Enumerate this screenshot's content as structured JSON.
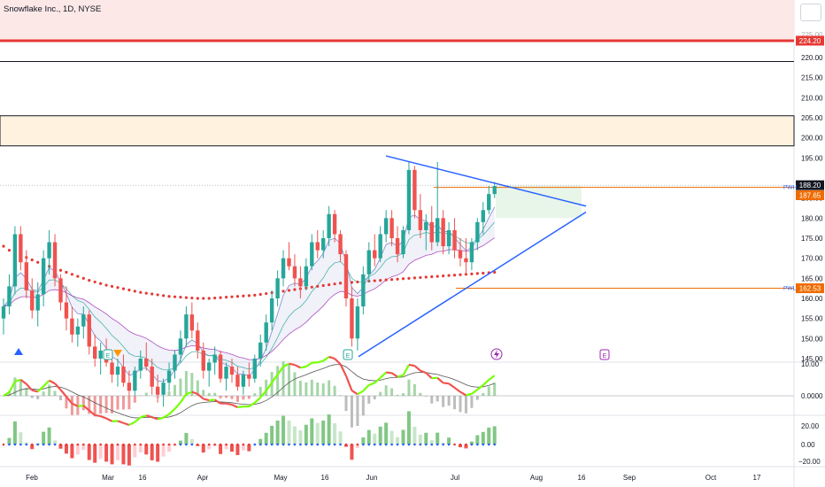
{
  "header": {
    "symbol_label": "Snowflake Inc., 1D, NYSE"
  },
  "colors": {
    "up": "#26a69a",
    "down": "#ef5350",
    "trend": "#2962ff",
    "support_res": "#ef6c00",
    "resistance_red": "#e53935",
    "ma_red": "#e53935",
    "macd_up": "#76ff03",
    "macd_down": "#ef5350"
  },
  "chart_data": {
    "type": "candlestick",
    "price_axis": {
      "ticks": [
        "220.00",
        "215.00",
        "210.00",
        "205.00",
        "200.00",
        "195.00",
        "185.00",
        "180.00",
        "175.00",
        "170.00",
        "165.00",
        "160.00",
        "155.00",
        "150.00",
        "145.00"
      ],
      "tick_values": [
        220,
        215,
        210,
        205,
        200,
        195,
        185,
        180,
        175,
        170,
        165,
        160,
        155,
        150,
        145
      ],
      "faded_top_tick": "225.00",
      "ylim": [
        145,
        226
      ]
    },
    "x_axis": {
      "labels": [
        "Feb",
        "Mar",
        "16",
        "Apr",
        "May",
        "16",
        "Jun",
        "Jul",
        "Aug",
        "16",
        "Sep",
        "Oct",
        "17"
      ]
    },
    "price_tags": {
      "resistance": "224.20",
      "last_price": "188.20",
      "pwh_level": "187.65",
      "pwl_level": "162.53",
      "pwh_side_label": "PWH",
      "pwl_side_label": "PWL"
    },
    "levels": {
      "red_resistance": 224.2,
      "black_line": 219,
      "orange_zone": [
        198,
        205.5
      ],
      "pwh": 187.65,
      "pwl": 162.53
    },
    "triangle": {
      "upper": {
        "from": [
          "2024-05-31",
          195.5
        ],
        "to": [
          "2024-08-15",
          183
        ]
      },
      "lower": {
        "from": [
          "2024-05-31",
          145.5
        ],
        "to": [
          "2024-08-15",
          181.5
        ]
      }
    },
    "event_markers": [
      "E",
      "E",
      "E",
      "E"
    ],
    "indicator1_axis": [
      "10.00",
      "0.0000"
    ],
    "indicator2_axis": [
      "20.00",
      "0.00",
      "−20.00"
    ],
    "series": [
      {
        "name": "candles",
        "values": [
          [
            155,
            160,
            151,
            158
          ],
          [
            158,
            166,
            156,
            163
          ],
          [
            163,
            178,
            161,
            176
          ],
          [
            176,
            178,
            167,
            169
          ],
          [
            169,
            172,
            160,
            162
          ],
          [
            162,
            165,
            155,
            157
          ],
          [
            157,
            164,
            153,
            161
          ],
          [
            161,
            172,
            158,
            170
          ],
          [
            170,
            177,
            166,
            174
          ],
          [
            174,
            176,
            163,
            165
          ],
          [
            165,
            166,
            157,
            159
          ],
          [
            159,
            163,
            152,
            155
          ],
          [
            155,
            158,
            149,
            151
          ],
          [
            151,
            155,
            148,
            153
          ],
          [
            153,
            158,
            150,
            156
          ],
          [
            156,
            157,
            146,
            148
          ],
          [
            148,
            151,
            143,
            145
          ],
          [
            145,
            149,
            141,
            147
          ],
          [
            147,
            150,
            143,
            144
          ],
          [
            144,
            147,
            139,
            141
          ],
          [
            141,
            145,
            138,
            143
          ],
          [
            143,
            146,
            138,
            139
          ],
          [
            139,
            142,
            135,
            137
          ],
          [
            137,
            143,
            135,
            142
          ],
          [
            142,
            147,
            140,
            145
          ],
          [
            145,
            149,
            142,
            143
          ],
          [
            143,
            145,
            136,
            138
          ],
          [
            138,
            141,
            134,
            136
          ],
          [
            136,
            140,
            133,
            139
          ],
          [
            139,
            144,
            137,
            142
          ],
          [
            142,
            147,
            140,
            146
          ],
          [
            146,
            152,
            144,
            150
          ],
          [
            150,
            158,
            148,
            156
          ],
          [
            156,
            159,
            150,
            152
          ],
          [
            152,
            154,
            145,
            147
          ],
          [
            147,
            149,
            140,
            142
          ],
          [
            142,
            145,
            138,
            144
          ],
          [
            144,
            148,
            141,
            146
          ],
          [
            146,
            147,
            139,
            140
          ],
          [
            140,
            144,
            137,
            143
          ],
          [
            143,
            145,
            139,
            141
          ],
          [
            141,
            143,
            137,
            138
          ],
          [
            138,
            142,
            136,
            141
          ],
          [
            141,
            144,
            138,
            140
          ],
          [
            140,
            146,
            139,
            145
          ],
          [
            145,
            151,
            143,
            149
          ],
          [
            149,
            156,
            147,
            154
          ],
          [
            154,
            162,
            152,
            160
          ],
          [
            160,
            167,
            158,
            165
          ],
          [
            165,
            172,
            163,
            170
          ],
          [
            170,
            174,
            167,
            168
          ],
          [
            168,
            171,
            163,
            165
          ],
          [
            165,
            168,
            160,
            163
          ],
          [
            163,
            170,
            162,
            168
          ],
          [
            168,
            176,
            167,
            174
          ],
          [
            174,
            177,
            170,
            172
          ],
          [
            172,
            177,
            170,
            175
          ],
          [
            175,
            183,
            173,
            181
          ],
          [
            181,
            182,
            174,
            176
          ],
          [
            176,
            177,
            169,
            171
          ],
          [
            171,
            172,
            158,
            160
          ],
          [
            160,
            163,
            148,
            150
          ],
          [
            150,
            160,
            147,
            158
          ],
          [
            158,
            168,
            156,
            166
          ],
          [
            166,
            174,
            164,
            172
          ],
          [
            172,
            176,
            168,
            170
          ],
          [
            170,
            178,
            169,
            176
          ],
          [
            176,
            182,
            174,
            180
          ],
          [
            180,
            182,
            173,
            175
          ],
          [
            175,
            178,
            169,
            171
          ],
          [
            171,
            178,
            170,
            177
          ],
          [
            177,
            194,
            176,
            192
          ],
          [
            192,
            193,
            180,
            182
          ],
          [
            182,
            186,
            175,
            177
          ],
          [
            177,
            181,
            172,
            179
          ],
          [
            179,
            183,
            172,
            174
          ],
          [
            174,
            194,
            173,
            180
          ],
          [
            180,
            182,
            171,
            173
          ],
          [
            173,
            179,
            171,
            177
          ],
          [
            177,
            180,
            170,
            172
          ],
          [
            172,
            175,
            168,
            170
          ],
          [
            170,
            175,
            166,
            169
          ],
          [
            169,
            175,
            167,
            174
          ],
          [
            174,
            180,
            172,
            179
          ],
          [
            179,
            184,
            176,
            182
          ],
          [
            182,
            188,
            181,
            186
          ],
          [
            186,
            189,
            185,
            188
          ]
        ]
      },
      {
        "name": "ma200",
        "values": [
          173,
          172,
          171.4,
          170.8,
          170.2,
          169.6,
          169,
          168.5,
          168,
          167.5,
          167,
          166.5,
          166,
          165.5,
          165,
          164.5,
          164.1,
          163.7,
          163.3,
          163,
          162.7,
          162.4,
          162.1,
          161.8,
          161.5,
          161.3,
          161.1,
          160.9,
          160.7,
          160.5,
          160.4,
          160.3,
          160.2,
          160.1,
          160,
          160,
          160,
          160.1,
          160.2,
          160.3,
          160.4,
          160.5,
          160.6,
          160.7,
          160.8,
          161,
          161.2,
          161.4,
          161.6,
          161.8,
          162,
          162.2,
          162.4,
          162.6,
          162.8,
          163,
          163.2,
          163.4,
          163.6,
          163.8,
          163.9,
          164,
          164.1,
          164.2,
          164.3,
          164.4,
          164.5,
          164.6,
          164.7,
          164.8,
          164.9,
          165,
          165.1,
          165.2,
          165.3,
          165.4,
          165.5,
          165.6,
          165.7,
          165.8,
          165.9,
          166,
          166.1,
          166.2,
          166.3,
          166.4,
          166.5
        ]
      }
    ]
  }
}
